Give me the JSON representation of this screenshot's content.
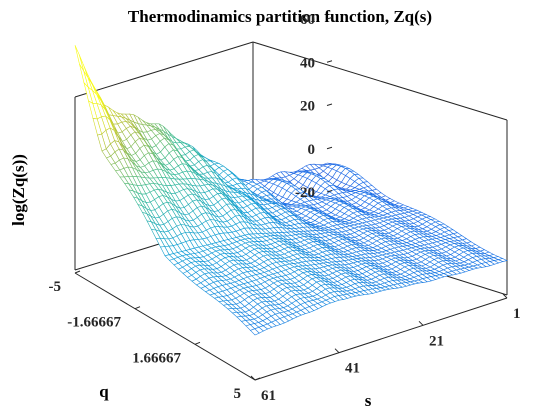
{
  "chart_data": {
    "type": "mesh3d",
    "title": "Thermodinamics partition function, Zq(s)",
    "xlabel": "s",
    "ylabel": "q",
    "zlabel": "log(Zq(s))",
    "x_axis": {
      "range": [
        1,
        61
      ],
      "ticks": [
        1,
        21,
        41,
        61
      ],
      "tick_labels": [
        "1",
        "21",
        "41",
        "61"
      ]
    },
    "y_axis": {
      "range": [
        -5,
        5
      ],
      "ticks": [
        -5,
        -1.66667,
        1.66667,
        5
      ],
      "tick_labels": [
        "-5",
        "-1.66667",
        "1.66667",
        "5"
      ]
    },
    "z_axis": {
      "range": [
        -20,
        60
      ],
      "ticks": [
        -20,
        0,
        20,
        40,
        60
      ],
      "tick_labels": [
        "-20",
        "0",
        "20",
        "40",
        "60"
      ]
    },
    "colormap": "parula",
    "surface_samples": [
      {
        "s": 1,
        "q": -5,
        "logZ": -6
      },
      {
        "s": 1,
        "q": 0,
        "logZ": -3
      },
      {
        "s": 1,
        "q": 5,
        "logZ": -1
      },
      {
        "s": 21,
        "q": -5,
        "logZ": -4
      },
      {
        "s": 21,
        "q": 0,
        "logZ": 0
      },
      {
        "s": 21,
        "q": 5,
        "logZ": 1
      },
      {
        "s": 41,
        "q": -5,
        "logZ": 35
      },
      {
        "s": 41,
        "q": 0,
        "logZ": 10
      },
      {
        "s": 41,
        "q": 5,
        "logZ": 5
      },
      {
        "s": 61,
        "q": -5,
        "logZ": 60
      },
      {
        "s": 61,
        "q": 0,
        "logZ": 12
      },
      {
        "s": 61,
        "q": 5,
        "logZ": 1
      }
    ]
  }
}
